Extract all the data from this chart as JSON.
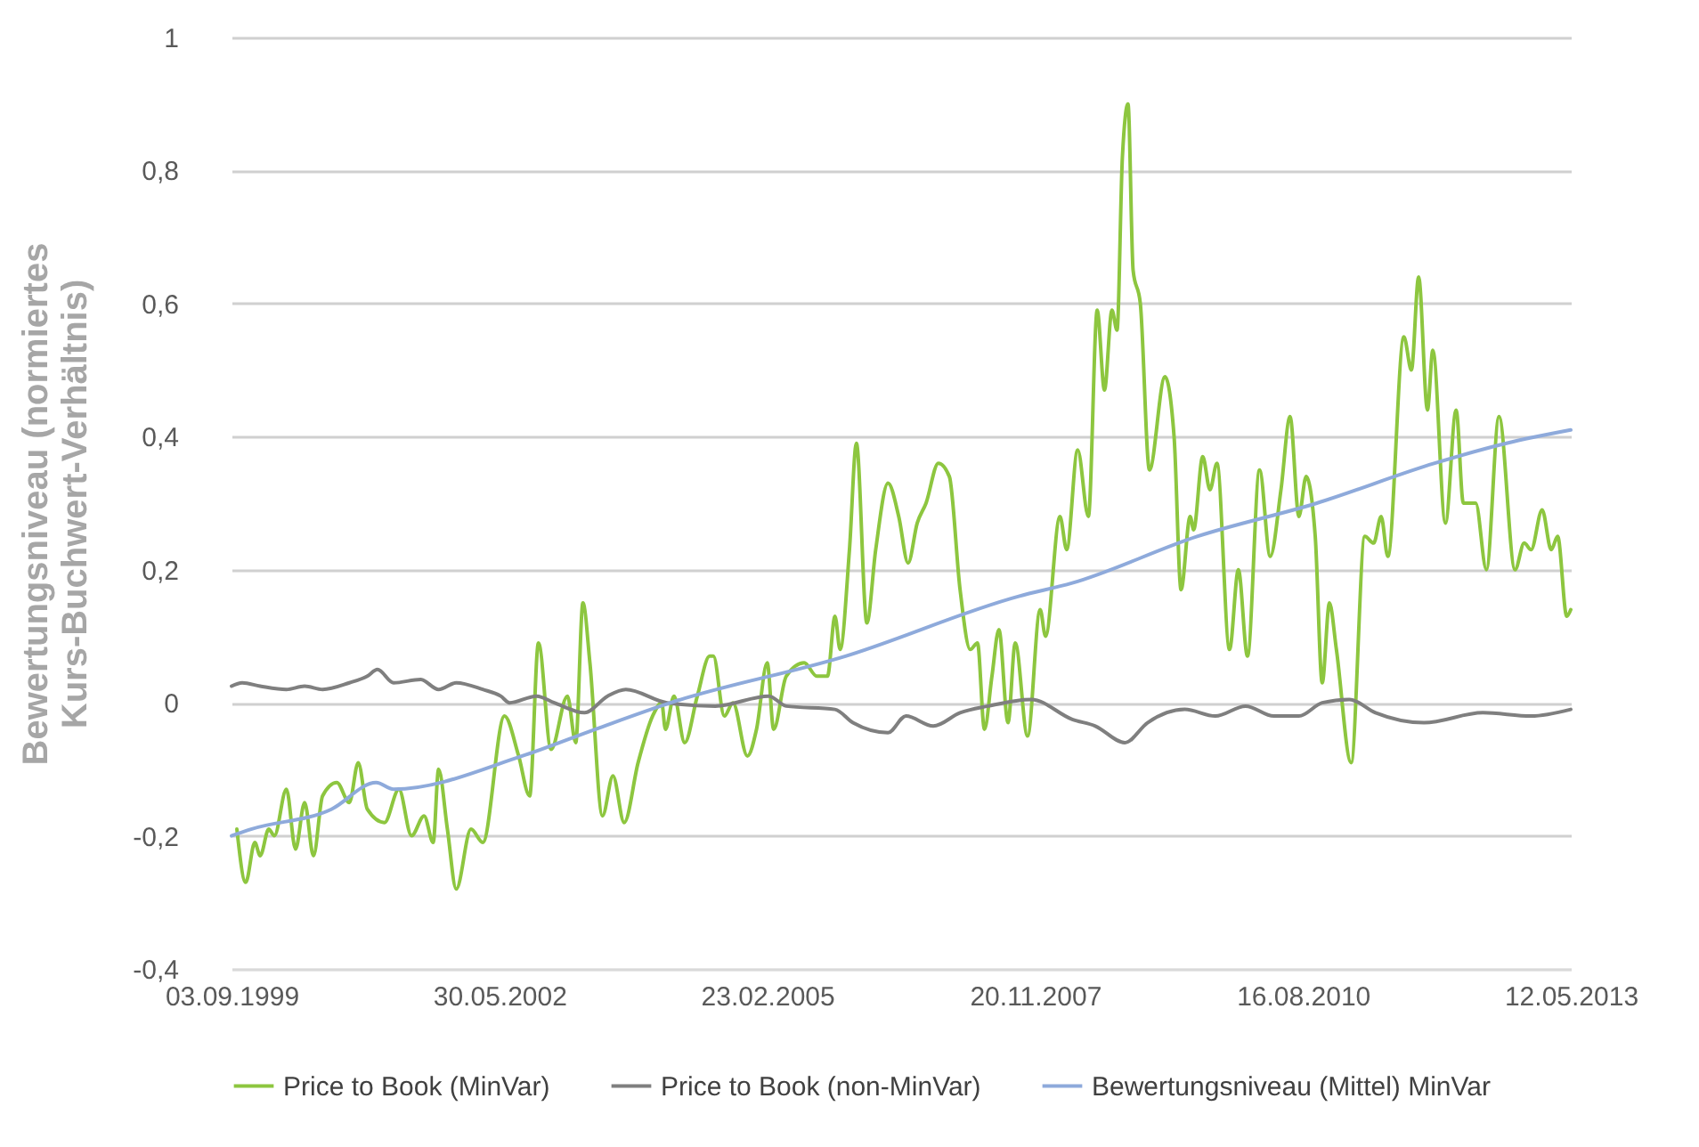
{
  "chart_data": {
    "type": "line",
    "ylabel": "Bewertungsniveau (normiertes Kurs-Buchwert-Verhältnis)",
    "xlim": [
      "1999-09-03",
      "2013-05-12"
    ],
    "xticks": [
      {
        "value": "1999-09-03",
        "label": "03.09.1999"
      },
      {
        "value": "2002-05-30",
        "label": "30.05.2002"
      },
      {
        "value": "2005-02-23",
        "label": "23.02.2005"
      },
      {
        "value": "2007-11-20",
        "label": "20.11.2007"
      },
      {
        "value": "2010-08-16",
        "label": "16.08.2010"
      },
      {
        "value": "2013-05-12",
        "label": "12.05.2013"
      }
    ],
    "ylim": [
      -0.4,
      1
    ],
    "yticks": [
      {
        "value": -0.4,
        "label": "-0,4"
      },
      {
        "value": -0.2,
        "label": "-0,2"
      },
      0,
      {
        "value": 0.2,
        "label": "0,2"
      },
      {
        "value": 0.4,
        "label": "0,4"
      },
      {
        "value": 0.6,
        "label": "0,6"
      },
      {
        "value": 0.8,
        "label": "0,8"
      },
      1
    ],
    "grid": "y",
    "legend": "bottom",
    "marker": "none",
    "line_style": "solid",
    "series": [
      {
        "name": "Price to Book (MinVar)",
        "color": "#8dc63f",
        "x": [
          "1999-09-23",
          "1999-10-26",
          "1999-11-29",
          "1999-12-19",
          "2000-01-20",
          "2000-02-10",
          "2000-03-26",
          "2000-04-29",
          "2000-06-02",
          "2000-07-05",
          "2000-08-08",
          "2000-09-30",
          "2000-11-16",
          "2000-12-19",
          "2001-01-22",
          "2001-03-27",
          "2001-05-20",
          "2001-07-06",
          "2001-08-22",
          "2001-09-25",
          "2001-10-15",
          "2001-11-17",
          "2001-12-20",
          "2002-02-13",
          "2002-03-29",
          "2002-06-18",
          "2002-08-10",
          "2002-09-20",
          "2002-10-23",
          "2002-12-09",
          "2003-02-08",
          "2003-03-11",
          "2003-04-07",
          "2003-05-03",
          "2003-06-19",
          "2003-07-28",
          "2003-09-08",
          "2003-10-30",
          "2003-12-23",
          "2004-01-26",
          "2004-02-09",
          "2004-03-12",
          "2004-04-21",
          "2004-06-07",
          "2004-07-23",
          "2004-08-06",
          "2004-09-16",
          "2004-10-18",
          "2004-12-11",
          "2005-01-14",
          "2005-02-23",
          "2005-03-19",
          "2005-05-05",
          "2005-07-11",
          "2005-08-27",
          "2005-10-06",
          "2005-11-03",
          "2005-11-22",
          "2005-12-27",
          "2006-01-22",
          "2006-03-02",
          "2006-04-04",
          "2006-05-20",
          "2006-06-29",
          "2006-08-03",
          "2006-09-06",
          "2006-10-09",
          "2006-11-24",
          "2007-01-04",
          "2007-02-13",
          "2007-03-23",
          "2007-04-19",
          "2007-05-15",
          "2007-06-12",
          "2007-07-08",
          "2007-08-11",
          "2007-09-07",
          "2007-10-23",
          "2007-12-09",
          "2007-12-29",
          "2008-02-21",
          "2008-03-17",
          "2008-04-27",
          "2008-06-06",
          "2008-07-09",
          "2008-08-05",
          "2008-09-02",
          "2008-09-21",
          "2008-10-11",
          "2008-11-01",
          "2008-11-20",
          "2008-12-17",
          "2009-01-20",
          "2009-03-19",
          "2009-04-22",
          "2009-05-18",
          "2009-06-21",
          "2009-07-04",
          "2009-08-07",
          "2009-09-03",
          "2009-09-29",
          "2009-11-15",
          "2009-12-18",
          "2010-01-21",
          "2010-03-07",
          "2010-04-16",
          "2010-05-26",
          "2010-06-29",
          "2010-08-01",
          "2010-08-28",
          "2010-10-01",
          "2010-10-27",
          "2010-11-23",
          "2010-12-19",
          "2011-02-12",
          "2011-04-04",
          "2011-05-07",
          "2011-06-04",
          "2011-06-29",
          "2011-08-28",
          "2011-09-25",
          "2011-10-22",
          "2011-11-24",
          "2011-12-14",
          "2012-01-30",
          "2012-03-10",
          "2012-04-06",
          "2012-05-22",
          "2012-07-01",
          "2012-08-17",
          "2012-10-16",
          "2012-11-19",
          "2012-12-15",
          "2013-01-25",
          "2013-02-28",
          "2013-03-24",
          "2013-04-27",
          "2013-05-12"
        ],
        "values": [
          -0.19,
          -0.27,
          -0.21,
          -0.23,
          -0.19,
          -0.2,
          -0.13,
          -0.22,
          -0.15,
          -0.23,
          -0.14,
          -0.12,
          -0.15,
          -0.09,
          -0.16,
          -0.18,
          -0.13,
          -0.2,
          -0.17,
          -0.21,
          -0.1,
          -0.19,
          -0.28,
          -0.19,
          -0.21,
          -0.02,
          -0.08,
          -0.14,
          0.09,
          -0.07,
          0.01,
          -0.06,
          0.15,
          0.06,
          -0.17,
          -0.11,
          -0.18,
          -0.09,
          -0.02,
          0,
          -0.04,
          0.01,
          -0.06,
          0.01,
          0.07,
          0.07,
          -0.02,
          0,
          -0.08,
          -0.04,
          0.06,
          -0.04,
          0.04,
          0.06,
          0.04,
          0.04,
          0.13,
          0.08,
          0.23,
          0.39,
          0.12,
          0.23,
          0.33,
          0.28,
          0.21,
          0.27,
          0.3,
          0.36,
          0.34,
          0.17,
          0.08,
          0.09,
          -0.04,
          0.04,
          0.11,
          -0.03,
          0.09,
          -0.05,
          0.14,
          0.1,
          0.28,
          0.23,
          0.38,
          0.28,
          0.59,
          0.47,
          0.59,
          0.56,
          0.82,
          0.9,
          0.65,
          0.6,
          0.35,
          0.49,
          0.4,
          0.17,
          0.28,
          0.26,
          0.37,
          0.32,
          0.36,
          0.08,
          0.2,
          0.07,
          0.35,
          0.22,
          0.32,
          0.43,
          0.28,
          0.34,
          0.25,
          0.03,
          0.15,
          0.08,
          -0.09,
          0.25,
          0.24,
          0.28,
          0.22,
          0.55,
          0.5,
          0.64,
          0.44,
          0.53,
          0.27,
          0.44,
          0.3,
          0.3,
          0.2,
          0.43,
          0.2,
          0.24,
          0.23,
          0.29,
          0.23,
          0.25,
          0.13,
          0.14
        ]
      },
      {
        "name": "Price to Book (non-MinVar)",
        "color": "#7f7f7f",
        "x": [
          "1999-09-03",
          "1999-10-13",
          "1999-12-19",
          "2000-03-26",
          "2000-06-02",
          "2000-08-08",
          "2000-11-16",
          "2001-01-22",
          "2001-03-01",
          "2001-04-30",
          "2001-08-09",
          "2001-10-15",
          "2001-12-20",
          "2002-03-29",
          "2002-06-04",
          "2002-07-07",
          "2002-10-16",
          "2002-12-21",
          "2003-04-13",
          "2003-07-08",
          "2003-09-14",
          "2004-02-15",
          "2004-08-13",
          "2005-03-01",
          "2005-05-05",
          "2005-11-03",
          "2006-01-09",
          "2006-05-20",
          "2006-07-26",
          "2006-11-05",
          "2007-02-13",
          "2007-05-28",
          "2007-11-06",
          "2008-04-07",
          "2008-07-02",
          "2008-10-20",
          "2009-01-13",
          "2009-06-01",
          "2009-09-23",
          "2010-01-14",
          "2010-04-29",
          "2010-08-01",
          "2010-10-27",
          "2011-02-05",
          "2011-05-14",
          "2011-11-11",
          "2012-06-18",
          "2012-12-15",
          "2013-05-12"
        ],
        "values": [
          0.025,
          0.03,
          0.025,
          0.02,
          0.025,
          0.02,
          0.03,
          0.04,
          0.05,
          0.03,
          0.035,
          0.02,
          0.03,
          0.02,
          0.01,
          0,
          0.01,
          0,
          -0.015,
          0.01,
          0.02,
          0,
          -0.005,
          0.01,
          -0.005,
          -0.01,
          -0.03,
          -0.045,
          -0.02,
          -0.035,
          -0.015,
          -0.005,
          0.005,
          -0.025,
          -0.035,
          -0.06,
          -0.03,
          -0.01,
          -0.02,
          -0.005,
          -0.02,
          -0.02,
          0,
          0.005,
          -0.015,
          -0.03,
          -0.015,
          -0.02,
          -0.01
        ]
      },
      {
        "name": "Bewertungsniveau (Mittel) MinVar",
        "color": "#8eaadb",
        "x": [
          "1999-09-03",
          "1999-11-15",
          "2000-09-10",
          "2001-02-24",
          "2001-04-30",
          "2002-08-23",
          "2003-05-22",
          "2004-02-28",
          "2005-12-12",
          "2007-09-20",
          "2008-04-07",
          "2009-07-17",
          "2010-10-07",
          "2011-12-21",
          "2012-09-14",
          "2013-05-12"
        ],
        "values": [
          -0.2,
          -0.19,
          -0.16,
          -0.12,
          -0.13,
          -0.08,
          -0.04,
          0,
          0.07,
          0.16,
          0.18,
          0.25,
          0.3,
          0.36,
          0.39,
          0.41
        ]
      }
    ]
  }
}
